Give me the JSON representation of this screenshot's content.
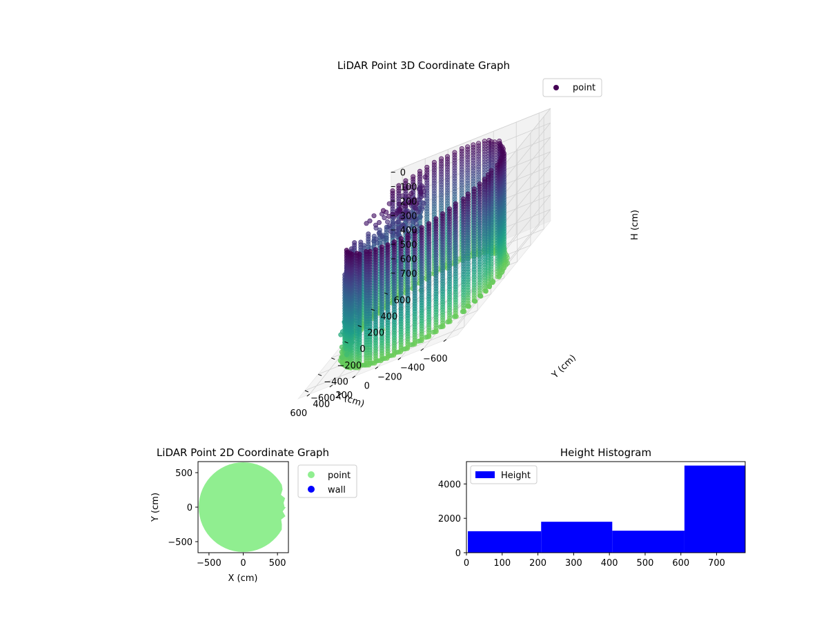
{
  "chart_data": [
    {
      "type": "scatter",
      "projection": "3d",
      "title": "LiDAR Point 3D Coordinate Graph",
      "xlabel": "X (cm)",
      "ylabel": "Y (cm)",
      "zlabel": "H (cm)",
      "xlim": [
        -700,
        700
      ],
      "ylim": [
        -700,
        700
      ],
      "zlim": [
        0,
        780
      ],
      "z_inverted": true,
      "xticks": [
        -600,
        -400,
        -200,
        0,
        200,
        400,
        600
      ],
      "yticks": [
        -600,
        -400,
        -200,
        0,
        200,
        400,
        600
      ],
      "zticks": [
        0,
        100,
        200,
        300,
        400,
        500,
        600,
        700
      ],
      "grid": true,
      "legend": {
        "placement": "upper-right",
        "entries": [
          "point"
        ]
      },
      "colormap": "viridis",
      "series": [
        {
          "name": "point",
          "marker_color": "#440154",
          "wall_radius_cm": 610,
          "height_range_cm": [
            0,
            780
          ],
          "stray_points": [
            {
              "x": 250,
              "y": 380,
              "h": 780
            },
            {
              "x": 380,
              "y": 300,
              "h": 820
            },
            {
              "x": 520,
              "y": 260,
              "h": 900
            },
            {
              "x": 620,
              "y": 200,
              "h": 960
            },
            {
              "x": 420,
              "y": 450,
              "h": 640
            },
            {
              "x": 560,
              "y": 520,
              "h": 560
            }
          ]
        }
      ]
    },
    {
      "type": "scatter",
      "title": "LiDAR Point 2D Coordinate Graph",
      "xlabel": "X (cm)",
      "ylabel": "Y (cm)",
      "xlim": [
        -660,
        660
      ],
      "ylim": [
        -660,
        660
      ],
      "xticks": [
        -500,
        0,
        500
      ],
      "yticks": [
        -500,
        0,
        500
      ],
      "legend": {
        "placement": "outside-right",
        "entries": [
          "point",
          "wall"
        ]
      },
      "series": [
        {
          "name": "point",
          "color": "#90ee90",
          "shape": "disk",
          "radius_cm": 650
        },
        {
          "name": "wall",
          "color": "#0000ff",
          "values": []
        }
      ]
    },
    {
      "type": "bar",
      "title": "Height Histogram",
      "xlabel": "",
      "ylabel": "",
      "xlim": [
        0,
        780
      ],
      "ylim": [
        0,
        5300
      ],
      "xticks": [
        0,
        100,
        200,
        300,
        400,
        500,
        600,
        700
      ],
      "yticks": [
        0,
        2000,
        4000
      ],
      "legend": {
        "placement": "upper-left",
        "entries": [
          "Height"
        ]
      },
      "series": [
        {
          "name": "Height",
          "color": "#0000ff",
          "bins": [
            {
              "start": 4,
              "end": 209,
              "count": 1250
            },
            {
              "start": 209,
              "end": 408,
              "count": 1800
            },
            {
              "start": 408,
              "end": 610,
              "count": 1280
            },
            {
              "start": 610,
              "end": 780,
              "count": 5070
            }
          ]
        }
      ]
    }
  ]
}
